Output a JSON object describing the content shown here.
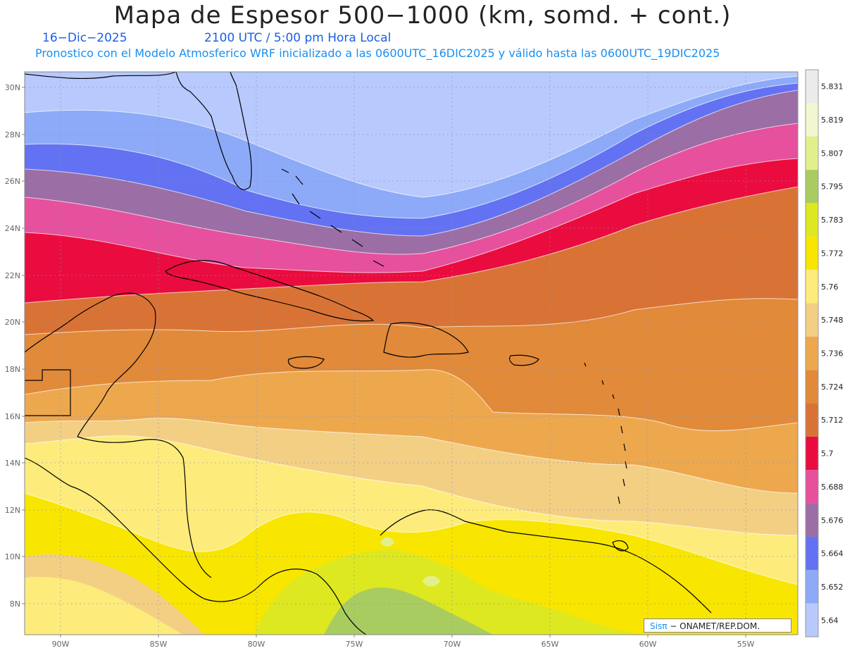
{
  "header": {
    "title": "Mapa de Espesor 500−1000 (km, somd. + cont.)",
    "date": "16−Dic−2025",
    "time": "2100 UTC / 5:00 pm Hora Local",
    "subtitle": "Pronostico con el Modelo Atmosferico WRF inicializado a las 0600UTC_16DIC2025 y válido hasta las  0600UTC_19DIC2025"
  },
  "lat_labels": [
    "30N",
    "28N",
    "26N",
    "24N",
    "22N",
    "20N",
    "18N",
    "16N",
    "14N",
    "12N",
    "10N",
    "8N"
  ],
  "lon_labels": [
    "90W",
    "85W",
    "80W",
    "75W",
    "70W",
    "65W",
    "60W",
    "55W"
  ],
  "colorbar": {
    "levels": [
      "5.831",
      "5.819",
      "5.807",
      "5.795",
      "5.783",
      "5.772",
      "5.76",
      "5.748",
      "5.736",
      "5.724",
      "5.712",
      "5.7",
      "5.688",
      "5.676",
      "5.664",
      "5.652",
      "5.64"
    ],
    "colors": [
      "#ebebeb",
      "#f3f7cf",
      "#e2f08c",
      "#a9cc60",
      "#dde820",
      "#f8e600",
      "#fdec7c",
      "#f3cf84",
      "#eda84e",
      "#e18a3a",
      "#d97335",
      "#ea0c3e",
      "#e6509d",
      "#9b6ea6",
      "#6372f2",
      "#8daaf8",
      "#b7c9fd"
    ]
  },
  "credit": {
    "brand": "Sisπ",
    "text": " − ONAMET/REP.DOM."
  }
}
